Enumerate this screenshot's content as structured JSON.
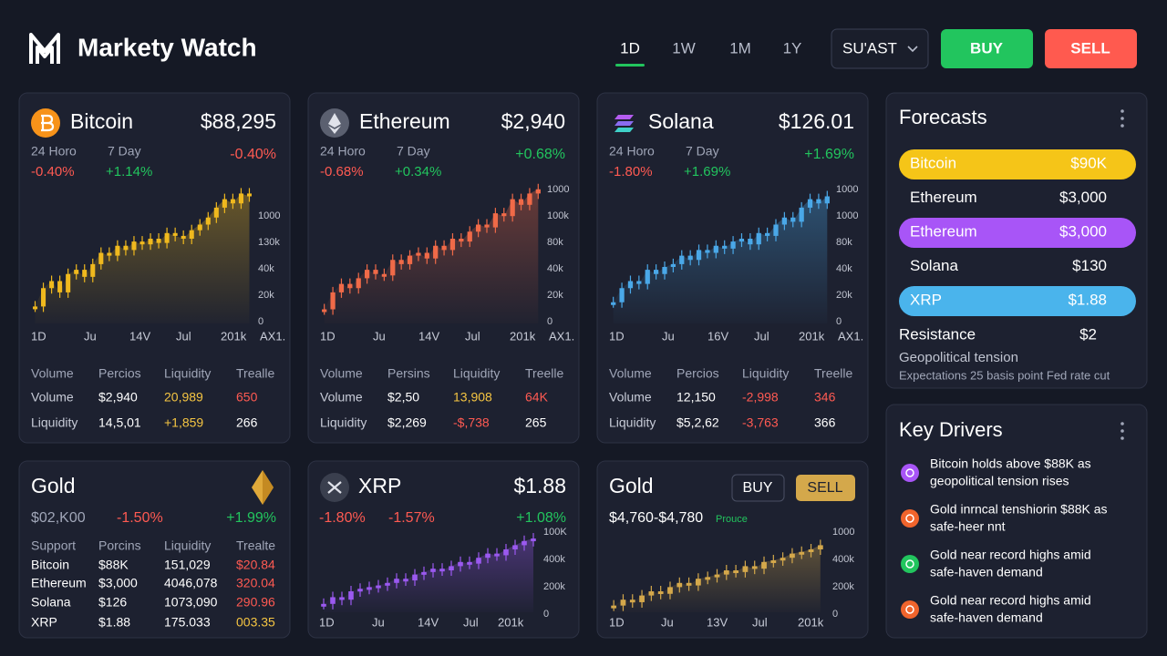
{
  "header": {
    "title": "Markety Watch",
    "tabs": [
      "1D",
      "1W",
      "1M",
      "1Y"
    ],
    "active_tab": "1D",
    "dropdown": "SU'AST",
    "buy": "BUY",
    "sell": "SELL"
  },
  "cards": [
    {
      "name": "Bitcoin",
      "price": "$88,295",
      "labels": [
        "24 Horo",
        "7 Day"
      ],
      "changes": [
        "-0.40%",
        "+1.14%"
      ],
      "change_right": "-0.40%",
      "color": "#f0b91e",
      "yaxis": [
        "0",
        "20k",
        "40k",
        "130k",
        "1000"
      ],
      "xaxis": [
        "1D",
        "Ju",
        "14V",
        "Jul",
        "201k",
        "AX1."
      ],
      "ylim": [
        0,
        100
      ],
      "candles": [
        12,
        25,
        30,
        22,
        35,
        38,
        33,
        42,
        50,
        48,
        55,
        52,
        58,
        56,
        60,
        57,
        64,
        62,
        60,
        66,
        70,
        75,
        82,
        88,
        85,
        92,
        90
      ],
      "table": [
        [
          "Volume",
          "Percios",
          "Liquidity",
          "Trealle"
        ],
        [
          "Volume",
          "$2,940",
          "20,989",
          "650"
        ],
        [
          "Liquidity",
          "14,5,01",
          "+1,859",
          "266"
        ]
      ],
      "table_colors": [
        [
          "#a0a6b8",
          "#a0a6b8",
          "#a0a6b8",
          "#a0a6b8"
        ],
        [
          "#c8ccd8",
          "#ffffff",
          "#f5c542",
          "#ff5a52"
        ],
        [
          "#c8ccd8",
          "#ffffff",
          "#f5c542",
          "#ffffff"
        ]
      ]
    },
    {
      "name": "Ethereum",
      "price": "$2,940",
      "labels": [
        "24 Horo",
        "7 Day"
      ],
      "changes": [
        "-0.68%",
        "+0.34%"
      ],
      "change_right": "+0.68%",
      "color": "#f06a48",
      "yaxis": [
        "0",
        "20k",
        "40k",
        "80k",
        "100k",
        "1000"
      ],
      "xaxis": [
        "1D",
        "Ju",
        "14V",
        "Jul",
        "201k",
        "AX1."
      ],
      "ylim": [
        0,
        100
      ],
      "candles": [
        10,
        22,
        28,
        25,
        32,
        38,
        35,
        34,
        45,
        42,
        48,
        50,
        46,
        55,
        52,
        60,
        58,
        65,
        70,
        68,
        78,
        76,
        88,
        84,
        92,
        95
      ],
      "table": [
        [
          "Volume",
          "Persins",
          "Liquidity",
          "Treelle"
        ],
        [
          "Volume",
          "$2,50",
          "13,908",
          "64K"
        ],
        [
          "Liquidity",
          "$2,269",
          "-$,738",
          "265"
        ]
      ],
      "table_colors": [
        [
          "#a0a6b8",
          "#a0a6b8",
          "#a0a6b8",
          "#a0a6b8"
        ],
        [
          "#c8ccd8",
          "#ffffff",
          "#f5c542",
          "#ff5a52"
        ],
        [
          "#c8ccd8",
          "#ffffff",
          "#ff5a52",
          "#ffffff"
        ]
      ]
    },
    {
      "name": "Solana",
      "price": "$126.01",
      "labels": [
        "24 Horo",
        "7 Day"
      ],
      "changes": [
        "-1.80%",
        "+1.69%"
      ],
      "change_right": "+1.69%",
      "color": "#4aa8e8",
      "yaxis": [
        "0",
        "20k",
        "40k",
        "80k",
        "1000",
        "1000"
      ],
      "xaxis": [
        "1D",
        "Ju",
        "16V",
        "Jul",
        "201k",
        "AX1."
      ],
      "ylim": [
        0,
        100
      ],
      "candles": [
        15,
        25,
        30,
        28,
        38,
        35,
        40,
        42,
        48,
        45,
        52,
        50,
        55,
        53,
        58,
        60,
        56,
        64,
        62,
        70,
        75,
        72,
        82,
        88,
        85,
        90
      ],
      "table": [
        [
          "Volume",
          "Percios",
          "Liquidity",
          "Treelle"
        ],
        [
          "Volume",
          "12,150",
          "-2,998",
          "346"
        ],
        [
          "Liquidity",
          "$5,2,62",
          "-3,763",
          "366"
        ]
      ],
      "table_colors": [
        [
          "#a0a6b8",
          "#a0a6b8",
          "#a0a6b8",
          "#a0a6b8"
        ],
        [
          "#c8ccd8",
          "#ffffff",
          "#ff5a52",
          "#ff5a52"
        ],
        [
          "#c8ccd8",
          "#ffffff",
          "#ff5a52",
          "#ffffff"
        ]
      ]
    }
  ],
  "gold_card": {
    "name": "Gold",
    "price": "$02,K00",
    "change": "-1.50%",
    "change_right": "+1.99%",
    "table": [
      [
        "Support",
        "Porcins",
        "Liquidity",
        "Trealte"
      ],
      [
        "Bitcoin",
        "$88K",
        "151,029",
        "$20.84"
      ],
      [
        "Ethereum",
        "$3,000",
        "4046,078",
        "320.04"
      ],
      [
        "Solana",
        "$126",
        "1073,090",
        "290.96"
      ],
      [
        "XRP",
        "$1.88",
        "175.033",
        "003.35"
      ]
    ],
    "table_colors": [
      [
        "#a0a6b8",
        "#a0a6b8",
        "#a0a6b8",
        "#a0a6b8"
      ],
      [
        "#ffffff",
        "#ffffff",
        "#ffffff",
        "#ff5a52"
      ],
      [
        "#ffffff",
        "#ffffff",
        "#ffffff",
        "#ff5a52"
      ],
      [
        "#ffffff",
        "#ffffff",
        "#ffffff",
        "#ff5a52"
      ],
      [
        "#ffffff",
        "#ffffff",
        "#ffffff",
        "#f5c542"
      ]
    ]
  },
  "xrp_card": {
    "name": "XRP",
    "price": "$1.88",
    "changes": [
      "-1.80%",
      "-1.57%"
    ],
    "change_right": "+1.08%",
    "color": "#9b59f0",
    "yaxis": [
      "0",
      "200k",
      "400k",
      "100K"
    ],
    "xaxis": [
      "1D",
      "Ju",
      "14V",
      "Jul",
      "201k"
    ],
    "ylim": [
      0,
      100
    ],
    "candles": [
      10,
      18,
      15,
      25,
      28,
      30,
      32,
      35,
      40,
      38,
      45,
      48,
      52,
      50,
      55,
      60,
      58,
      65,
      70,
      68,
      75,
      80,
      85,
      88
    ]
  },
  "gold2_card": {
    "name": "Gold",
    "buy": "BUY",
    "sell": "SELL",
    "price": "$4,760-$4,780",
    "note": "Prouce",
    "color": "#d4a84b",
    "yaxis": [
      "0",
      "200k",
      "400k",
      "1000"
    ],
    "xaxis": [
      "1D",
      "Ju",
      "13V",
      "Jul",
      "201k"
    ],
    "ylim": [
      0,
      100
    ],
    "candles": [
      8,
      15,
      12,
      20,
      25,
      22,
      30,
      35,
      32,
      40,
      42,
      45,
      50,
      48,
      55,
      52,
      60,
      62,
      65,
      70,
      72,
      75,
      80
    ]
  },
  "forecasts": {
    "title": "Forecasts",
    "items": [
      {
        "label": "Bitcoin",
        "value": "$90K",
        "color": "#f5c518"
      },
      {
        "label": "Ethereum",
        "value": "$3,000"
      },
      {
        "label": "Ethereum",
        "value": "$3,000",
        "color": "#a855f7"
      },
      {
        "label": "Solana",
        "value": "$130"
      },
      {
        "label": "XRP",
        "value": "$1.88",
        "color": "#4ab4ec"
      }
    ],
    "resistance": {
      "label": "Resistance",
      "value": "$2"
    },
    "notes": [
      "Geopolitical tension",
      "Expectations 25 basis point Fed rate cut"
    ]
  },
  "key_drivers": {
    "title": "Key Drivers",
    "items": [
      {
        "lines": [
          "Bitcoin holds above $88K as",
          "geopolitical tension rises"
        ],
        "color": "#a855f7"
      },
      {
        "lines": [
          "Gold inrncal tenshiorin $88K as",
          "safe-heer nnt"
        ],
        "color": "#f0642c"
      },
      {
        "lines": [
          "Gold near record highs amid",
          "safe-haven demand"
        ],
        "color": "#22c55e"
      },
      {
        "lines": [
          "Gold near record highs amid",
          "safe-haven demand"
        ],
        "color": "#f0642c"
      }
    ]
  }
}
